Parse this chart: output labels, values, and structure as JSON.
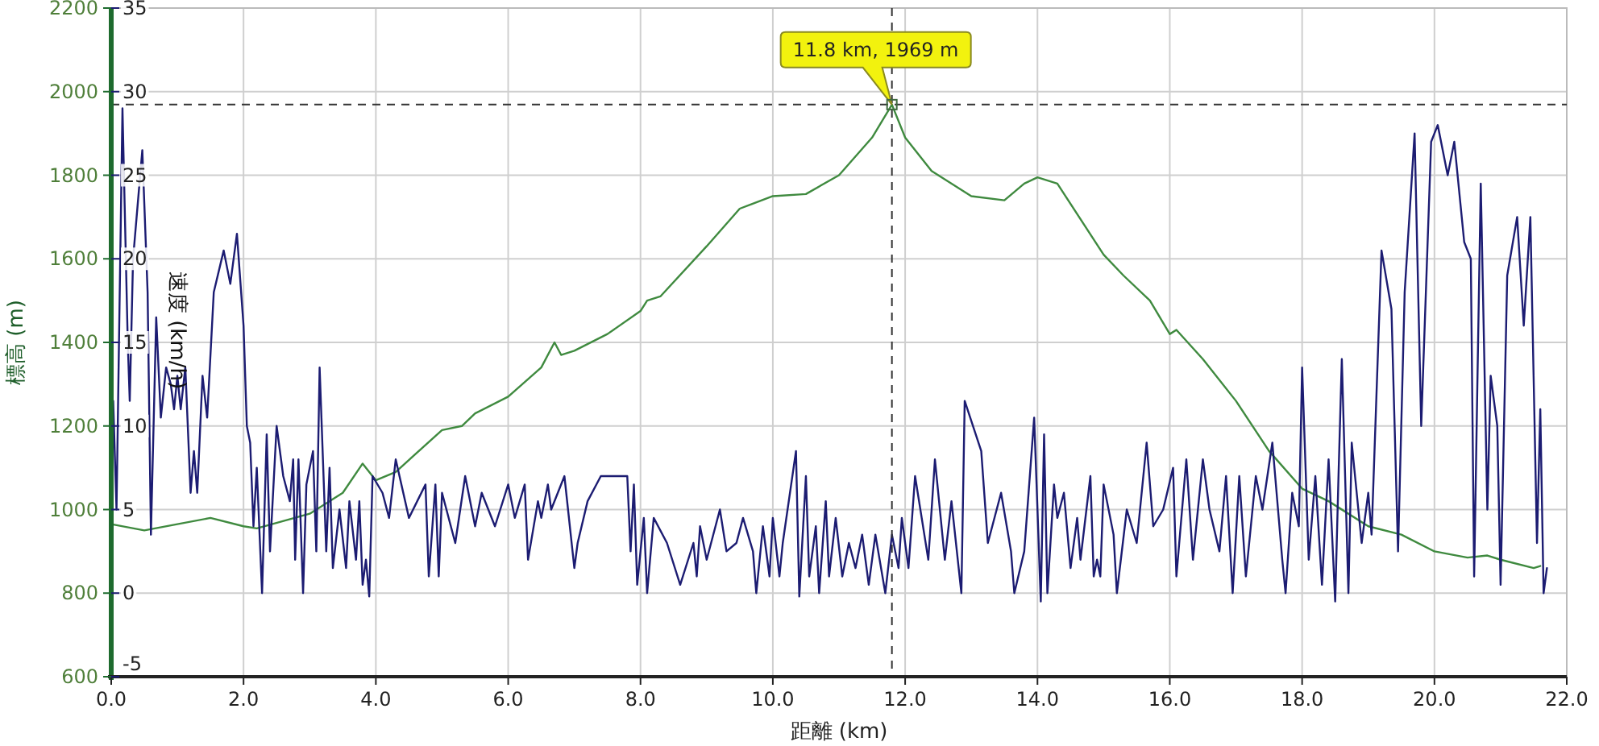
{
  "chart_data": {
    "type": "line",
    "xlabel": "距離 (km)",
    "ylabel": "標高 (m)",
    "y2label": "速度 (km/h)",
    "xlim": [
      0,
      22
    ],
    "xticks": [
      {
        "value": 0,
        "label": "0.0"
      },
      {
        "value": 2,
        "label": "2.0"
      },
      {
        "value": 4,
        "label": "4.0"
      },
      {
        "value": 6,
        "label": "6.0"
      },
      {
        "value": 8,
        "label": "8.0"
      },
      {
        "value": 10,
        "label": "10.0"
      },
      {
        "value": 12,
        "label": "12.0"
      },
      {
        "value": 14,
        "label": "14.0"
      },
      {
        "value": 16,
        "label": "16.0"
      },
      {
        "value": 18,
        "label": "18.0"
      },
      {
        "value": 20,
        "label": "20.0"
      },
      {
        "value": 22,
        "label": "22.0"
      }
    ],
    "ylim": [
      600,
      2200
    ],
    "yticks": [
      600,
      800,
      1000,
      1200,
      1400,
      1600,
      1800,
      2000,
      2200
    ],
    "y2lim": [
      -5,
      35
    ],
    "y2ticks": [
      -5,
      0,
      5,
      10,
      15,
      20,
      25,
      30,
      35
    ],
    "grid": true,
    "series": [
      {
        "color": "#3f8a3f",
        "x": [
          0,
          0.5,
          1.0,
          1.5,
          2.0,
          2.2,
          3.0,
          3.5,
          3.8,
          4.0,
          4.3,
          5.0,
          5.3,
          5.5,
          6.0,
          6.5,
          6.7,
          6.8,
          7.0,
          7.5,
          8.0,
          8.1,
          8.3,
          9.0,
          9.5,
          10.0,
          10.5,
          11.0,
          11.5,
          11.8,
          12.0,
          12.4,
          13.0,
          13.5,
          13.8,
          14.0,
          14.3,
          15.0,
          15.3,
          15.7,
          16.0,
          16.1,
          16.5,
          17.0,
          17.5,
          18.0,
          18.4,
          19.0,
          19.5,
          20.0,
          20.5,
          20.8,
          21.0,
          21.5,
          21.6
        ],
        "values": [
          965,
          950,
          965,
          980,
          960,
          955,
          990,
          1040,
          1110,
          1070,
          1090,
          1190,
          1200,
          1230,
          1270,
          1340,
          1400,
          1370,
          1380,
          1420,
          1475,
          1500,
          1510,
          1630,
          1720,
          1750,
          1755,
          1800,
          1890,
          1969,
          1890,
          1810,
          1750,
          1740,
          1780,
          1795,
          1780,
          1610,
          1560,
          1500,
          1420,
          1430,
          1360,
          1260,
          1140,
          1050,
          1020,
          960,
          940,
          900,
          885,
          890,
          880,
          860,
          865
        ]
      },
      {
        "color": "#1c1c72",
        "axis": "y2",
        "x": [
          0.0,
          0.03,
          0.08,
          0.17,
          0.25,
          0.28,
          0.33,
          0.47,
          0.55,
          0.6,
          0.68,
          0.75,
          0.83,
          0.9,
          0.95,
          1.0,
          1.05,
          1.12,
          1.2,
          1.25,
          1.3,
          1.38,
          1.45,
          1.55,
          1.7,
          1.8,
          1.9,
          2.0,
          2.05,
          2.1,
          2.15,
          2.2,
          2.28,
          2.35,
          2.4,
          2.5,
          2.6,
          2.7,
          2.75,
          2.78,
          2.83,
          2.9,
          2.95,
          3.05,
          3.1,
          3.15,
          3.25,
          3.3,
          3.35,
          3.45,
          3.55,
          3.6,
          3.7,
          3.75,
          3.8,
          3.85,
          3.9,
          3.95,
          4.1,
          4.2,
          4.3,
          4.5,
          4.75,
          4.8,
          4.9,
          4.95,
          5.0,
          5.2,
          5.35,
          5.5,
          5.6,
          5.8,
          6.0,
          6.1,
          6.25,
          6.3,
          6.45,
          6.5,
          6.6,
          6.65,
          6.85,
          7.0,
          7.05,
          7.2,
          7.4,
          7.8,
          7.85,
          7.9,
          7.95,
          8.05,
          8.1,
          8.2,
          8.4,
          8.6,
          8.8,
          8.85,
          8.9,
          9.0,
          9.2,
          9.3,
          9.45,
          9.55,
          9.7,
          9.75,
          9.85,
          9.95,
          10.0,
          10.1,
          10.15,
          10.35,
          10.4,
          10.5,
          10.55,
          10.65,
          10.7,
          10.8,
          10.85,
          10.95,
          11.05,
          11.15,
          11.25,
          11.35,
          11.45,
          11.55,
          11.7,
          11.8,
          11.9,
          11.95,
          12.05,
          12.15,
          12.25,
          12.35,
          12.45,
          12.6,
          12.7,
          12.85,
          12.9,
          13.15,
          13.25,
          13.45,
          13.6,
          13.65,
          13.8,
          13.95,
          14.05,
          14.1,
          14.15,
          14.25,
          14.3,
          14.4,
          14.5,
          14.6,
          14.65,
          14.8,
          14.85,
          14.9,
          14.95,
          15.0,
          15.15,
          15.2,
          15.35,
          15.5,
          15.65,
          15.75,
          15.9,
          16.05,
          16.1,
          16.25,
          16.35,
          16.5,
          16.6,
          16.75,
          16.85,
          16.95,
          17.05,
          17.15,
          17.3,
          17.4,
          17.55,
          17.7,
          17.75,
          17.85,
          17.95,
          18.0,
          18.1,
          18.2,
          18.3,
          18.4,
          18.5,
          18.55,
          18.6,
          18.7,
          18.75,
          18.9,
          19.0,
          19.05,
          19.2,
          19.35,
          19.45,
          19.55,
          19.7,
          19.8,
          19.95,
          20.05,
          20.2,
          20.3,
          20.45,
          20.55,
          20.6,
          20.7,
          20.8,
          20.85,
          20.95,
          21.0,
          21.1,
          21.25,
          21.35,
          21.45,
          21.55,
          21.6,
          21.65,
          21.7
        ],
        "values": [
          2,
          11.5,
          5,
          29,
          15,
          11.5,
          20,
          26.5,
          18,
          3.5,
          16.5,
          10.5,
          13.5,
          12.5,
          11,
          13,
          11,
          13.5,
          6,
          8.5,
          6,
          13,
          10.5,
          18,
          20.5,
          18.5,
          21.5,
          16,
          10,
          9,
          4,
          7.5,
          0,
          9.5,
          2.5,
          10,
          7,
          5.5,
          8,
          2,
          8,
          0,
          6.5,
          8.5,
          2.5,
          13.5,
          2.5,
          7.5,
          1.5,
          5,
          1.5,
          5.5,
          2,
          5.5,
          0.5,
          2,
          -0.2,
          7,
          6,
          4.5,
          8,
          4.5,
          6.5,
          1,
          6.5,
          1,
          6,
          3,
          7,
          4,
          6,
          4,
          6.5,
          4.5,
          6.5,
          2,
          5.5,
          4.5,
          6.5,
          5,
          7,
          1.5,
          3,
          5.5,
          7,
          7,
          2.5,
          6.5,
          0.5,
          4.5,
          0,
          4.5,
          3,
          0.5,
          3,
          1,
          4,
          2,
          5,
          2.5,
          3,
          4.5,
          2.5,
          0,
          4,
          1,
          4.5,
          1,
          3,
          8.5,
          -0.2,
          7,
          1,
          4,
          0,
          5.5,
          1,
          4.5,
          1,
          3,
          1.5,
          3.5,
          0.5,
          3.5,
          0,
          3.5,
          1.5,
          4.5,
          1.5,
          7,
          4.5,
          2,
          8,
          2,
          5.5,
          0,
          11.5,
          8.5,
          3,
          6,
          2.5,
          0,
          2.5,
          10.5,
          -0.5,
          9.5,
          0,
          6.5,
          4.5,
          6,
          1.5,
          4.5,
          2,
          7,
          1,
          2,
          1,
          6.5,
          3.5,
          0,
          5,
          3,
          9,
          4,
          5,
          7.5,
          1,
          8,
          2,
          8,
          5,
          2.5,
          7,
          0,
          7,
          1,
          7,
          5,
          9,
          2,
          0,
          6,
          4,
          13.5,
          2,
          7,
          0.5,
          8,
          -0.5,
          7,
          14,
          0,
          9,
          3,
          6,
          3.5,
          20.5,
          17,
          2.5,
          18,
          27.5,
          10,
          27,
          28,
          25,
          27,
          21,
          20,
          1,
          24.5,
          5,
          13,
          10,
          0.5,
          19,
          22.5,
          16,
          22.5,
          3,
          11,
          0,
          1.5
        ]
      }
    ],
    "ref_lines": [
      {
        "axis": "x",
        "value": 11.8,
        "color": "#333333",
        "line_style": "dashed"
      },
      {
        "axis": "y",
        "value": 1969,
        "color": "#333333",
        "line_style": "dashed"
      }
    ],
    "annotations": [
      {
        "text": "11.8 km, 1969 m",
        "x": 11.8,
        "y": 1969
      }
    ]
  }
}
